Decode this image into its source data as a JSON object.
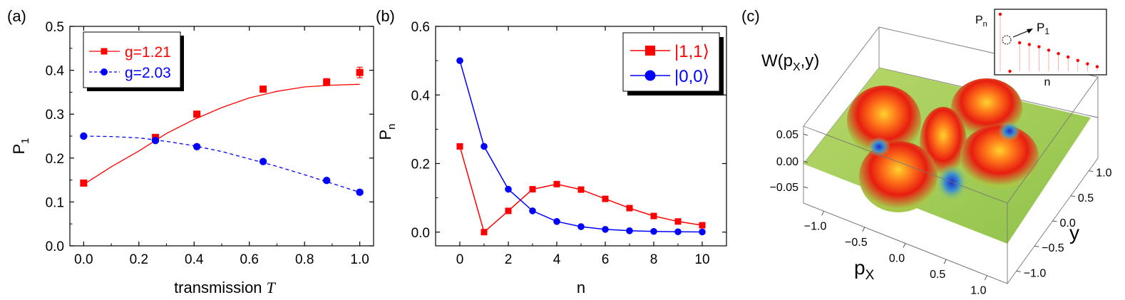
{
  "panels": {
    "a": "(a)",
    "b": "(b)",
    "c": "(c)"
  },
  "colors": {
    "red": "#ff0000",
    "blue": "#0000ff",
    "axis": "#000000"
  },
  "chart_data": [
    {
      "type": "scatter",
      "panel": "(a)",
      "xlabel_text": "transmission",
      "xlabel_var": "T",
      "ylabel_main": "P",
      "ylabel_sub": "1",
      "xlim": [
        -0.05,
        1.05
      ],
      "ylim": [
        0.0,
        0.5
      ],
      "xticks": [
        "0.0",
        "0.2",
        "0.4",
        "0.6",
        "0.8",
        "1.0"
      ],
      "yticks": [
        "0.0",
        "0.1",
        "0.2",
        "0.3",
        "0.4",
        "0.5"
      ],
      "legend_position": "top-left",
      "series": [
        {
          "name": "g=1.21",
          "marker": "square",
          "line": "solid",
          "color": "#ff0000",
          "points": [
            [
              0.0,
              0.143
            ],
            [
              0.26,
              0.247
            ],
            [
              0.41,
              0.3
            ],
            [
              0.65,
              0.357
            ],
            [
              0.88,
              0.373
            ],
            [
              1.0,
              0.395
            ]
          ],
          "errors": [
            0,
            0,
            0,
            0,
            0.008,
            0.012
          ],
          "fit": [
            [
              0.0,
              0.14
            ],
            [
              0.1,
              0.18
            ],
            [
              0.2,
              0.216
            ],
            [
              0.3,
              0.256
            ],
            [
              0.4,
              0.288
            ],
            [
              0.5,
              0.315
            ],
            [
              0.6,
              0.337
            ],
            [
              0.7,
              0.352
            ],
            [
              0.8,
              0.362
            ],
            [
              0.9,
              0.366
            ],
            [
              1.0,
              0.368
            ]
          ]
        },
        {
          "name": "g=2.03",
          "marker": "circle",
          "line": "dashed",
          "color": "#0000ff",
          "points": [
            [
              0.0,
              0.25
            ],
            [
              0.26,
              0.24
            ],
            [
              0.41,
              0.226
            ],
            [
              0.65,
              0.192
            ],
            [
              0.88,
              0.149
            ],
            [
              1.0,
              0.122
            ]
          ],
          "errors": [
            0,
            0,
            0,
            0,
            0,
            0
          ],
          "fit": [
            [
              0.0,
              0.25
            ],
            [
              0.1,
              0.249
            ],
            [
              0.2,
              0.246
            ],
            [
              0.3,
              0.238
            ],
            [
              0.4,
              0.228
            ],
            [
              0.5,
              0.215
            ],
            [
              0.6,
              0.198
            ],
            [
              0.7,
              0.181
            ],
            [
              0.8,
              0.162
            ],
            [
              0.9,
              0.142
            ],
            [
              1.0,
              0.122
            ]
          ]
        }
      ]
    },
    {
      "type": "line",
      "panel": "(b)",
      "xlabel_text": "n",
      "ylabel_main": "P",
      "ylabel_sub": "n",
      "xlim": [
        -1,
        11
      ],
      "ylim": [
        -0.04,
        0.6
      ],
      "xticks": [
        "0",
        "2",
        "4",
        "6",
        "8",
        "10"
      ],
      "yticks": [
        "0.0",
        "0.2",
        "0.4",
        "0.6"
      ],
      "legend_position": "top-right",
      "series": [
        {
          "name": "|1,1⟩",
          "marker": "square",
          "color": "#ff0000",
          "x": [
            0,
            1,
            2,
            3,
            4,
            5,
            6,
            7,
            8,
            9,
            10
          ],
          "y": [
            0.25,
            0.0,
            0.062,
            0.125,
            0.14,
            0.124,
            0.097,
            0.07,
            0.047,
            0.031,
            0.02
          ]
        },
        {
          "name": "|0,0⟩",
          "marker": "circle",
          "color": "#0000ff",
          "x": [
            0,
            1,
            2,
            3,
            4,
            5,
            6,
            7,
            8,
            9,
            10
          ],
          "y": [
            0.5,
            0.25,
            0.125,
            0.062,
            0.031,
            0.016,
            0.008,
            0.004,
            0.002,
            0.001,
            0.0005
          ]
        }
      ]
    },
    {
      "type": "surface3d",
      "panel": "(c)",
      "title_main": "W(p",
      "title_sub": "X",
      "title_end": ",y)",
      "xlabel_main": "p",
      "xlabel_sub": "X",
      "ylabel": "y",
      "zticks": [
        "0.05",
        "0.00",
        "−0.05"
      ],
      "xticks": [
        "−1.0",
        "−0.5",
        "0.0",
        "0.5",
        "1.0"
      ],
      "yticks": [
        "1.0",
        "0.5",
        "0.0",
        "−0.5",
        "−1.0"
      ],
      "inset": {
        "ylabel_main": "P",
        "ylabel_sub": "n",
        "xlabel": "n",
        "annotation_main": "P",
        "annotation_sub": "1",
        "values": [
          1.0,
          0.0,
          0.5,
          0.47,
          0.43,
          0.37,
          0.31,
          0.25,
          0.19,
          0.13,
          0.08
        ]
      }
    }
  ]
}
